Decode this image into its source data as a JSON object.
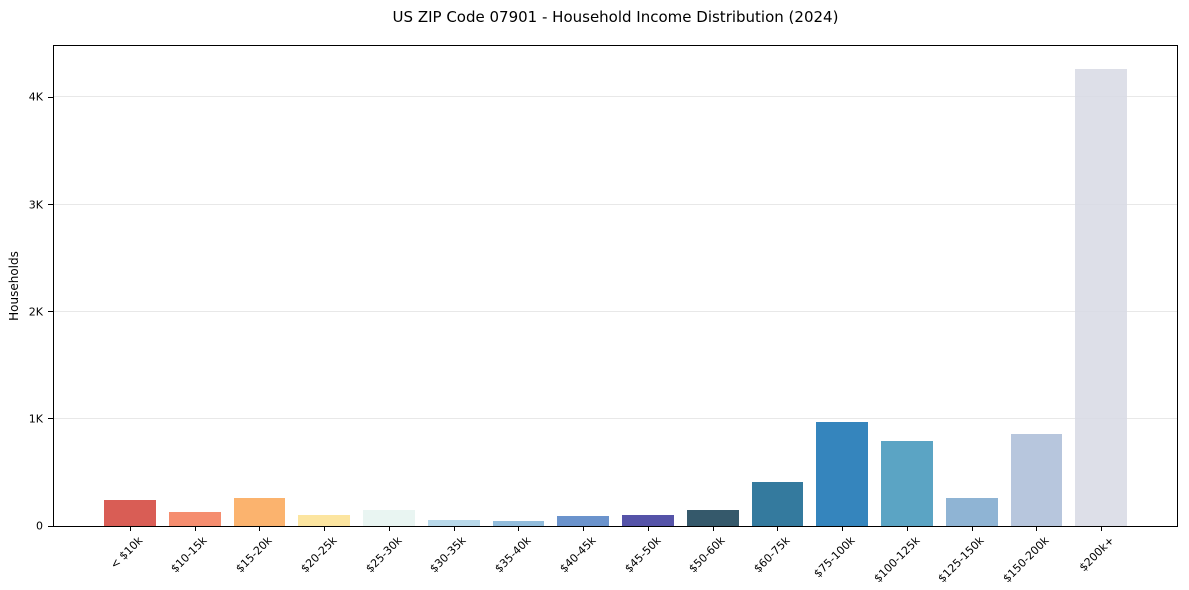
{
  "header": {
    "title": "US ZIP Code 07901 - Household Income Distribution (2024)"
  },
  "chart_data": {
    "type": "bar",
    "title": "US ZIP Code 07901 - Household Income Distribution (2024)",
    "xlabel": "",
    "ylabel": "Households",
    "categories": [
      "< $10k",
      "$10-15k",
      "$15-20k",
      "$20-25k",
      "$25-30k",
      "$30-35k",
      "$35-40k",
      "$40-45k",
      "$45-50k",
      "$50-60k",
      "$60-75k",
      "$75-100k",
      "$100-125k",
      "$125-150k",
      "$150-200k",
      "$200k+"
    ],
    "values": [
      240,
      130,
      260,
      105,
      150,
      58,
      50,
      95,
      105,
      150,
      415,
      975,
      790,
      265,
      860,
      4270
    ],
    "bar_colors": [
      "#d95d55",
      "#f58d6f",
      "#fbb36e",
      "#fce5a0",
      "#e9f5f2",
      "#b9d9ea",
      "#92bcdb",
      "#6b93cc",
      "#5553a8",
      "#35596b",
      "#347a9e",
      "#3585bd",
      "#5ba4c4",
      "#8fb4d4",
      "#b7c6dd",
      "#d7d9e4"
    ],
    "ylim": [
      0,
      4480
    ],
    "yticks": [
      {
        "value": 0,
        "label": "0"
      },
      {
        "value": 1000,
        "label": "1K"
      },
      {
        "value": 2000,
        "label": "2K"
      },
      {
        "value": 3000,
        "label": "3K"
      },
      {
        "value": 4000,
        "label": "4K"
      }
    ],
    "grid": "horizontal",
    "legend": "none",
    "x_label_rotation_deg": 45
  },
  "colors": {
    "background": "#ffffff",
    "axis": "#000000",
    "gridline": "#e8e8e8",
    "text": "#000000"
  }
}
